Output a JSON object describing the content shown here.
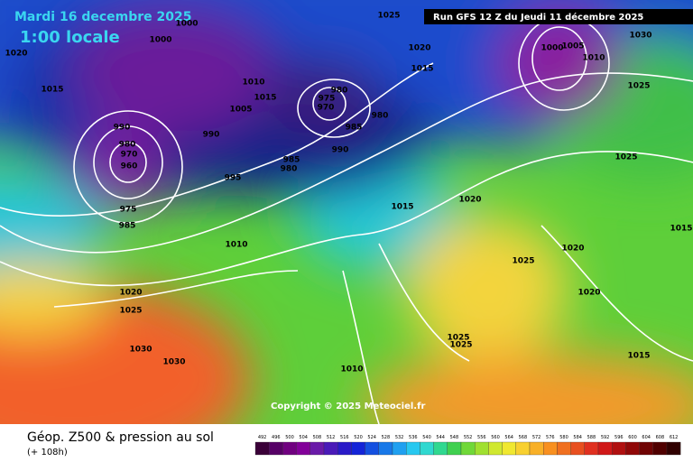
{
  "header": {
    "date": "Mardi 16 decembre 2025",
    "time": "1:00 locale",
    "run": "Run GFS 12 Z du Jeudi 11 décembre 2025",
    "copyright": "Copyright © 2025 Meteociel.fr"
  },
  "footer": {
    "title": "Géop. Z500 & pression au sol",
    "lead": "(+ 108h)"
  },
  "isobar_labels": [
    "1000",
    "1000",
    "1020",
    "1025",
    "1020",
    "1015",
    "1015",
    "1010",
    "1015",
    "1005",
    "980",
    "975",
    "970",
    "980",
    "985",
    "990",
    "990",
    "980",
    "970",
    "960",
    "990",
    "985",
    "980",
    "995",
    "975",
    "985",
    "1010",
    "1020",
    "1025",
    "1030",
    "1030",
    "1000",
    "1005",
    "1010",
    "1030",
    "1025",
    "1025",
    "1020",
    "1015",
    "1025",
    "1020",
    "1020",
    "1015",
    "1025",
    "1025",
    "1010",
    "1015"
  ],
  "scale": [
    492,
    496,
    500,
    504,
    508,
    512,
    516,
    520,
    524,
    528,
    532,
    536,
    540,
    544,
    548,
    552,
    556,
    560,
    564,
    568,
    572,
    576,
    580,
    584,
    588,
    592,
    596,
    600,
    604,
    608,
    612
  ]
}
